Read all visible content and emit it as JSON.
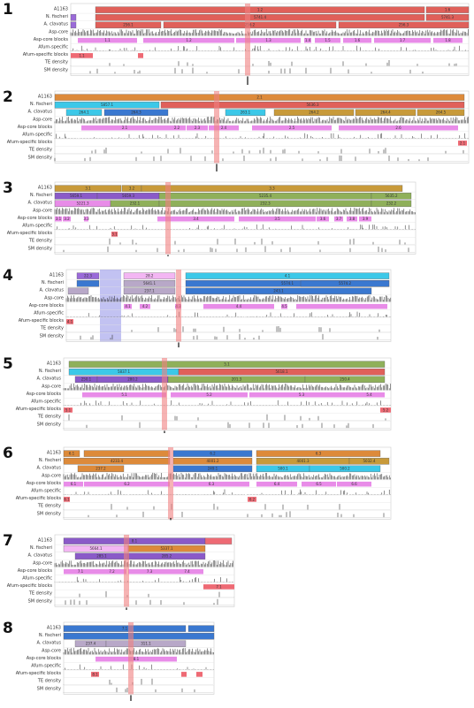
{
  "track_labels": [
    "A1163",
    "N. fischeri",
    "A. clavatus",
    "Asp-core",
    "Asp-core blocks",
    "Afum-specific",
    "Afum-specific blocks",
    "TE density",
    "SM density"
  ],
  "colors": {
    "orange": "#dd8a3a",
    "red": "#e0605a",
    "green": "#8fb05a",
    "olive": "#c89a3a",
    "cyan": "#3cc8e8",
    "blue": "#3a78d0",
    "purple": "#8a5ac8",
    "violet": "#9a6ad8",
    "pink": "#e88ce8",
    "lightpink": "#f3b6f3",
    "grey": "#b8a8c8",
    "salmon": "#ee6a74",
    "highlight": "#f08080",
    "bluehl": "#8f8fe8"
  },
  "chromosomes": [
    {
      "number": "1",
      "blocks": {
        "A1163": [
          {
            "t": "1.2",
            "c": "red"
          },
          {
            "t": "1.6",
            "c": "red"
          }
        ],
        "nf": [
          {
            "t": "5741.4",
            "c": "red"
          },
          {
            "t": "5741.3",
            "c": "red"
          }
        ],
        "ac": [
          {
            "t": "256.1",
            "c": "red"
          },
          {
            "t": "256.2",
            "c": "red"
          },
          {
            "t": "256.3",
            "c": "red"
          }
        ],
        "core": [
          "1.1",
          "1.2",
          "1.3",
          "1.4",
          "1.5",
          "1.6",
          "1.7",
          "1.8"
        ],
        "spec": [
          "1.1"
        ]
      }
    },
    {
      "number": "2",
      "blocks": {
        "A1163": [
          {
            "t": "2.1",
            "c": "orange"
          }
        ],
        "nf": [
          {
            "t": "5857.1",
            "c": "cyan"
          },
          {
            "t": "5636.3",
            "c": "red"
          }
        ],
        "ac": [
          {
            "t": "264.1",
            "c": "cyan"
          },
          {
            "t": "264.3",
            "c": "blue"
          },
          {
            "t": "263.1",
            "c": "cyan"
          },
          {
            "t": "264.2",
            "c": "olive"
          },
          {
            "t": "264.4",
            "c": "olive"
          },
          {
            "t": "264.5",
            "c": "olive"
          }
        ],
        "core": [
          "2.1",
          "2.2",
          "2.3",
          "2.4",
          "2.5",
          "2.6"
        ],
        "spec": [
          "2.1"
        ]
      }
    },
    {
      "number": "3",
      "blocks": {
        "A1163": [
          {
            "t": "3.1",
            "c": "olive"
          },
          {
            "t": "3.2",
            "c": "olive"
          },
          {
            "t": "3.3",
            "c": "olive"
          }
        ],
        "nf": [
          {
            "t": "5659.1",
            "c": "purple"
          },
          {
            "t": "5659.3",
            "c": "purple"
          },
          {
            "t": "5235.4",
            "c": "green"
          },
          {
            "t": "5635.2",
            "c": "green"
          }
        ],
        "ac": [
          {
            "t": "5221.3",
            "c": "pink"
          },
          {
            "t": "232.1",
            "c": "green"
          },
          {
            "t": "232.3",
            "c": "green"
          },
          {
            "t": "232.2",
            "c": "green"
          }
        ],
        "core": [
          "3.1",
          "3.2",
          "3.3",
          "3.4",
          "3.5",
          "3.6",
          "3.7",
          "3.8",
          "3.9"
        ],
        "spec": [
          "3.1"
        ]
      }
    },
    {
      "number": "4",
      "blocks": {
        "A1163": [
          {
            "t": "22.3",
            "c": "violet"
          },
          {
            "t": "28.2",
            "c": "lightpink"
          },
          {
            "t": "4.1",
            "c": "cyan"
          }
        ],
        "nf": [
          {
            "t": "5641.1",
            "c": "grey"
          },
          {
            "t": "5574.1",
            "c": "blue"
          },
          {
            "t": "5574.2",
            "c": "blue"
          }
        ],
        "ac": [
          {
            "t": "237.1",
            "c": "grey"
          },
          {
            "t": "243.1",
            "c": "blue"
          }
        ],
        "core": [
          "4.1",
          "4.2",
          "4.3",
          "4.4",
          "4.5"
        ],
        "spec": [
          "4.1"
        ]
      }
    },
    {
      "number": "5",
      "blocks": {
        "A1163": [
          {
            "t": "5.1",
            "c": "green"
          }
        ],
        "nf": [
          {
            "t": "5837.1",
            "c": "cyan"
          },
          {
            "t": "5618.1",
            "c": "red"
          }
        ],
        "ac": [
          {
            "t": "250.1",
            "c": "purple"
          },
          {
            "t": "280.2",
            "c": "purple"
          },
          {
            "t": "201.3",
            "c": "green"
          },
          {
            "t": "250.4",
            "c": "green"
          }
        ],
        "core": [
          "5.1",
          "5.2",
          "5.3",
          "5.4"
        ],
        "spec": [
          "5.1",
          "5.2"
        ]
      }
    },
    {
      "number": "6",
      "blocks": {
        "A1163": [
          {
            "t": "6.1",
            "c": "orange"
          },
          {
            "t": "6.2",
            "c": "blue"
          },
          {
            "t": "6.3",
            "c": "orange"
          }
        ],
        "nf": [
          {
            "t": "4233.4",
            "c": "orange"
          },
          {
            "t": "4001.2",
            "c": "orange"
          },
          {
            "t": "4001.3",
            "c": "olive"
          },
          {
            "t": "5032.4",
            "c": "olive"
          }
        ],
        "ac": [
          {
            "t": "237.2",
            "c": "orange"
          },
          {
            "t": "249.1",
            "c": "blue"
          },
          {
            "t": "500.1",
            "c": "cyan"
          },
          {
            "t": "500.2",
            "c": "cyan"
          }
        ],
        "core": [
          "6.1",
          "6.2",
          "6.3",
          "6.4",
          "6.5",
          "6.6"
        ],
        "spec": [
          "6.1",
          "6.2"
        ]
      }
    },
    {
      "number": "7",
      "blocks": {
        "A1163": [
          {
            "t": "8.1",
            "c": "purple"
          }
        ],
        "nf": [
          {
            "t": "5664.1",
            "c": "lightpink"
          },
          {
            "t": "5337.1",
            "c": "orange"
          }
        ],
        "ac": [
          {
            "t": "285.1",
            "c": "purple"
          },
          {
            "t": "285.2",
            "c": "purple"
          }
        ],
        "core": [
          "7.1",
          "7.2",
          "7.3",
          "7.4"
        ],
        "spec": [
          "7.1"
        ]
      }
    },
    {
      "number": "8",
      "blocks": {
        "A1163": [
          {
            "t": "7.1",
            "c": "blue"
          }
        ],
        "nf": [],
        "ac": [
          {
            "t": "237.4",
            "c": "grey"
          },
          {
            "t": "311.1",
            "c": "grey"
          }
        ],
        "core": [
          "8.1"
        ],
        "spec": [
          "8.1"
        ]
      }
    }
  ]
}
